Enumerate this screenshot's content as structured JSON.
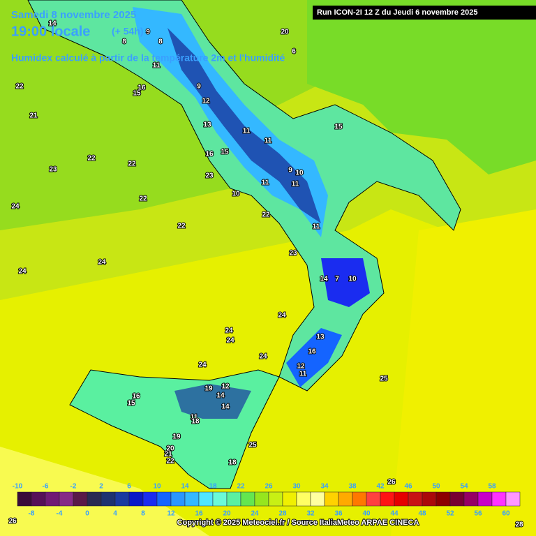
{
  "header": {
    "date": "Samedi 8 novembre 2025",
    "time": "19:00 locale",
    "lead": "(+ 54h)",
    "subtitle": "Humidex calculé à partir de la température 2m et l'humidité",
    "run": "Run ICON-2I 12 Z du Jeudi 6 novembre 2025"
  },
  "legend": {
    "colors": [
      "#3a0a3a",
      "#561058",
      "#701a74",
      "#862a86",
      "#5a1a48",
      "#2a2a52",
      "#1e3270",
      "#1a3aa0",
      "#0a18c8",
      "#1a2cf0",
      "#1464ff",
      "#2a96ff",
      "#34b8ff",
      "#50e6ff",
      "#6afad8",
      "#5af0a0",
      "#64e650",
      "#96e61e",
      "#c8f014",
      "#f0f000",
      "#ffff64",
      "#ffffa0",
      "#ffd200",
      "#ffaa00",
      "#ff7800",
      "#ff4040",
      "#ff1414",
      "#e60000",
      "#c81414",
      "#aa0a0a",
      "#8c0000",
      "#780032",
      "#960064",
      "#c800c8",
      "#ff32ff",
      "#ff96ff"
    ],
    "top_labels": [
      -10,
      -6,
      -2,
      2,
      6,
      10,
      14,
      18,
      22,
      26,
      30,
      34,
      38,
      42,
      46,
      50,
      54,
      58
    ],
    "bottom_labels": [
      -8,
      -4,
      0,
      4,
      8,
      12,
      16,
      20,
      24,
      28,
      32,
      36,
      40,
      44,
      48,
      52,
      56,
      60
    ]
  },
  "map_labels": [
    14,
    9,
    8,
    8,
    20,
    6,
    11,
    22,
    21,
    16,
    15,
    9,
    12,
    13,
    11,
    11,
    15,
    22,
    22,
    23,
    16,
    15,
    10,
    9,
    23,
    11,
    11,
    10,
    24,
    22,
    22,
    22,
    11,
    23,
    24,
    24,
    14,
    7,
    10,
    24,
    24,
    24,
    24,
    13,
    16,
    24,
    12,
    11,
    25,
    12,
    19,
    14,
    14,
    16,
    15,
    11,
    18,
    19,
    20,
    21,
    22,
    25,
    18,
    26,
    26,
    28
  ],
  "footer": "Copyright © 2025 Meteociel.fr / Source ItaliaMeteo ARPAE CINECA"
}
